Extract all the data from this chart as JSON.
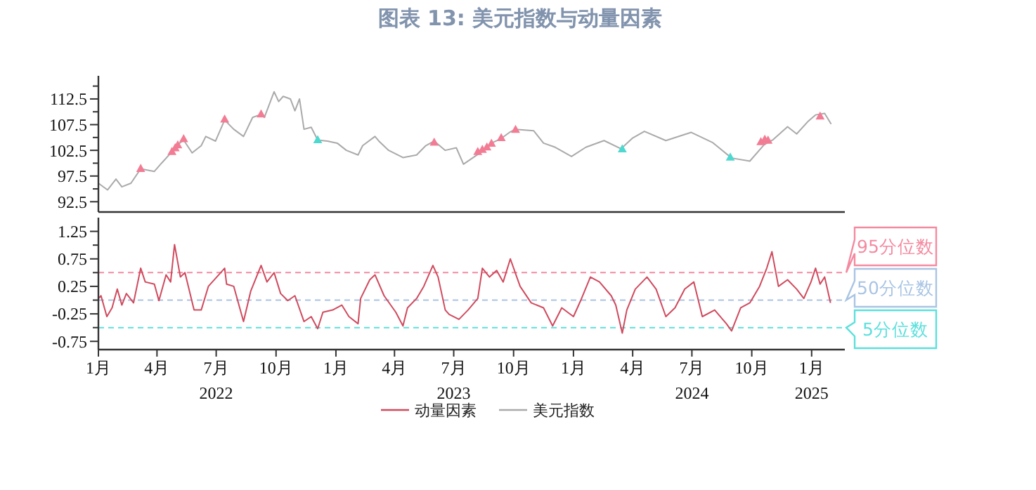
{
  "chart_data": [
    {
      "type": "line",
      "title": "图表 13: 美元指数与动量因素",
      "xlim": [
        "2022-01-01",
        "2025-02-21"
      ],
      "ylim": [
        90.5,
        117
      ],
      "yticks": [
        {
          "value": 92.5,
          "label": "92.5"
        },
        {
          "value": 95,
          "label": null
        },
        {
          "value": 97.5,
          "label": "97.5"
        },
        {
          "value": 100,
          "label": null
        },
        {
          "value": 102.5,
          "label": "102.5"
        },
        {
          "value": 105,
          "label": null
        },
        {
          "value": 107.5,
          "label": "107.5"
        },
        {
          "value": 110,
          "label": null
        },
        {
          "value": 112.5,
          "label": "112.5"
        },
        {
          "value": 115,
          "label": null
        }
      ],
      "tick_labels": "y",
      "legend": "bottom",
      "series": [
        {
          "name": "美元指数",
          "color": "#aaaaaa",
          "type": "line",
          "x": [
            "2022-01-01",
            "2022-01-15",
            "2022-01-28",
            "2022-02-06",
            "2022-02-20",
            "2022-03-07",
            "2022-03-28",
            "2022-04-08",
            "2022-04-26",
            "2022-05-03",
            "2022-05-12",
            "2022-05-25",
            "2022-06-08",
            "2022-06-15",
            "2022-06-30",
            "2022-07-14",
            "2022-07-28",
            "2022-08-12",
            "2022-08-26",
            "2022-09-08",
            "2022-09-13",
            "2022-09-28",
            "2022-10-05",
            "2022-10-12",
            "2022-10-23",
            "2022-10-30",
            "2022-11-06",
            "2022-11-13",
            "2022-11-24",
            "2022-12-04",
            "2022-12-19",
            "2023-01-03",
            "2023-01-17",
            "2023-02-04",
            "2023-02-11",
            "2023-03-02",
            "2023-03-08",
            "2023-03-23",
            "2023-04-14",
            "2023-05-05",
            "2023-05-19",
            "2023-06-01",
            "2023-06-18",
            "2023-07-05",
            "2023-07-16",
            "2023-07-31",
            "2023-08-14",
            "2023-08-28",
            "2023-09-12",
            "2023-09-26",
            "2023-10-04",
            "2023-11-01",
            "2023-11-16",
            "2023-12-04",
            "2023-12-29",
            "2024-01-20",
            "2024-02-17",
            "2024-03-14",
            "2024-04-01",
            "2024-04-19",
            "2024-05-22",
            "2024-06-30",
            "2024-08-02",
            "2024-08-31",
            "2024-09-28",
            "2024-10-20",
            "2024-11-03",
            "2024-11-25",
            "2024-12-09",
            "2024-12-27",
            "2025-01-07",
            "2025-01-21",
            "2025-01-31"
          ],
          "values": [
            96.1,
            94.8,
            96.9,
            95.4,
            96.1,
            98.9,
            98.4,
            100,
            102.5,
            103.6,
            104.5,
            102,
            103.4,
            105.2,
            104.3,
            108.4,
            106.6,
            105.2,
            108.9,
            109.5,
            108.9,
            113.9,
            112,
            113,
            112.5,
            110.2,
            112.5,
            106.6,
            107,
            104.5,
            104.3,
            103.9,
            102.5,
            101.6,
            103.4,
            105.2,
            104.3,
            102.5,
            101.1,
            101.6,
            103.4,
            104.3,
            102.5,
            103,
            99.8,
            101.1,
            102.3,
            103.9,
            104.8,
            106.1,
            106.6,
            106.3,
            103.9,
            103.1,
            101.3,
            103.1,
            104.4,
            102.8,
            104.9,
            106.2,
            104.4,
            106,
            104,
            101,
            100.4,
            103.6,
            104.6,
            107.1,
            105.7,
            108.2,
            109.4,
            109.7,
            107.6
          ]
        },
        {
          "color": "#f27c94",
          "type": "scatter",
          "marker": "triangle",
          "x": [
            "2022-03-07",
            "2022-04-24",
            "2022-04-29",
            "2022-05-03",
            "2022-05-12",
            "2022-07-14",
            "2022-09-08",
            "2023-06-01",
            "2023-08-07",
            "2023-08-14",
            "2023-08-21",
            "2023-08-28",
            "2023-09-12",
            "2023-10-04",
            "2024-10-15",
            "2024-10-21",
            "2024-10-26",
            "2025-01-14"
          ],
          "values": [
            99,
            102.3,
            103,
            103.6,
            104.8,
            108.6,
            109.6,
            104.1,
            102.3,
            102.7,
            103.2,
            103.9,
            105,
            106.6,
            104.2,
            104.7,
            104.5,
            109.2
          ]
        },
        {
          "color": "#4dd9d0",
          "type": "scatter",
          "marker": "triangle",
          "x": [
            "2022-12-04",
            "2024-03-16",
            "2024-08-29"
          ],
          "values": [
            104.6,
            102.8,
            101.2
          ]
        }
      ]
    },
    {
      "type": "line",
      "xlim": [
        "2022-01-01",
        "2025-02-21"
      ],
      "ylim": [
        -0.9,
        1.5
      ],
      "xticks": [
        {
          "value": "2022-01-01",
          "label": "1月"
        },
        {
          "value": "2022-04-01",
          "label": "4月"
        },
        {
          "value": "2022-07-01",
          "label": "7月\n2022"
        },
        {
          "value": "2022-10-01",
          "label": "10月"
        },
        {
          "value": "2023-01-01",
          "label": "1月"
        },
        {
          "value": "2023-04-01",
          "label": "4月"
        },
        {
          "value": "2023-07-01",
          "label": "7月\n2023"
        },
        {
          "value": "2023-10-01",
          "label": "10月"
        },
        {
          "value": "2024-01-01",
          "label": "1月"
        },
        {
          "value": "2024-04-01",
          "label": "4月"
        },
        {
          "value": "2024-07-01",
          "label": "7月\n2024"
        },
        {
          "value": "2024-10-01",
          "label": "10月"
        },
        {
          "value": "2025-01-01",
          "label": "1月\n2025"
        }
      ],
      "yticks": [
        {
          "value": -0.75,
          "label": "-0.75"
        },
        {
          "value": -0.5,
          "label": null
        },
        {
          "value": -0.25,
          "label": "-0.25"
        },
        {
          "value": 0,
          "label": null
        },
        {
          "value": 0.25,
          "label": "0.25"
        },
        {
          "value": 0.5,
          "label": null
        },
        {
          "value": 0.75,
          "label": "0.75"
        },
        {
          "value": 1,
          "label": null
        },
        {
          "value": 1.25,
          "label": "1.25"
        }
      ],
      "legend": "bottom",
      "ref_lines": [
        {
          "axis": "y",
          "value": 0.5,
          "label": "95分位数",
          "color": "#f48aa0",
          "line_style": "dashed"
        },
        {
          "axis": "y",
          "value": 0,
          "label": "50分位数",
          "color": "#a9c4e4",
          "line_style": "dashed"
        },
        {
          "axis": "y",
          "value": -0.5,
          "label": "5分位数",
          "color": "#5ce0dc",
          "line_style": "dashed"
        }
      ],
      "series": [
        {
          "name": "动量因素",
          "color": "#d04a5e",
          "type": "line",
          "x": [
            "2022-01-01",
            "2022-01-05",
            "2022-01-14",
            "2022-01-22",
            "2022-01-30",
            "2022-02-06",
            "2022-02-13",
            "2022-02-24",
            "2022-03-07",
            "2022-03-14",
            "2022-03-28",
            "2022-04-04",
            "2022-04-15",
            "2022-04-22",
            "2022-04-28",
            "2022-05-07",
            "2022-05-14",
            "2022-05-28",
            "2022-06-08",
            "2022-06-19",
            "2022-07-14",
            "2022-07-17",
            "2022-07-28",
            "2022-08-12",
            "2022-08-23",
            "2022-09-08",
            "2022-09-17",
            "2022-09-28",
            "2022-10-08",
            "2022-10-19",
            "2022-10-30",
            "2022-11-13",
            "2022-11-24",
            "2022-12-04",
            "2022-12-12",
            "2022-12-27",
            "2023-01-10",
            "2023-01-21",
            "2023-02-04",
            "2023-02-08",
            "2023-02-22",
            "2023-03-02",
            "2023-03-16",
            "2023-04-03",
            "2023-04-14",
            "2023-04-21",
            "2023-05-05",
            "2023-05-16",
            "2023-05-30",
            "2023-06-07",
            "2023-06-18",
            "2023-06-24",
            "2023-07-09",
            "2023-07-23",
            "2023-08-07",
            "2023-08-14",
            "2023-08-25",
            "2023-09-05",
            "2023-09-15",
            "2023-09-26",
            "2023-10-11",
            "2023-10-28",
            "2023-11-16",
            "2023-11-30",
            "2023-12-14",
            "2024-01-01",
            "2024-01-12",
            "2024-01-27",
            "2024-02-10",
            "2024-02-28",
            "2024-03-06",
            "2024-03-16",
            "2024-03-23",
            "2024-04-05",
            "2024-04-23",
            "2024-05-07",
            "2024-05-22",
            "2024-06-05",
            "2024-06-20",
            "2024-07-04",
            "2024-07-17",
            "2024-08-05",
            "2024-08-23",
            "2024-08-31",
            "2024-09-14",
            "2024-09-28",
            "2024-10-13",
            "2024-10-24",
            "2024-11-01",
            "2024-11-11",
            "2024-11-25",
            "2024-12-09",
            "2024-12-20",
            "2024-12-31",
            "2025-01-07",
            "2025-01-14",
            "2025-01-21",
            "2025-01-30"
          ],
          "values": [
            0.03,
            0.08,
            -0.3,
            -0.14,
            0.2,
            -0.09,
            0.12,
            -0.05,
            0.58,
            0.33,
            0.29,
            -0.01,
            0.46,
            0.33,
            1.01,
            0.42,
            0.5,
            -0.18,
            -0.18,
            0.25,
            0.58,
            0.29,
            0.25,
            -0.39,
            0.16,
            0.63,
            0.33,
            0.5,
            0.12,
            -0.01,
            0.08,
            -0.39,
            -0.3,
            -0.52,
            -0.22,
            -0.18,
            -0.09,
            -0.3,
            -0.43,
            0.03,
            0.37,
            0.46,
            0.08,
            -0.22,
            -0.47,
            -0.14,
            0.03,
            0.25,
            0.63,
            0.42,
            -0.18,
            -0.26,
            -0.35,
            -0.18,
            0.03,
            0.58,
            0.42,
            0.54,
            0.33,
            0.75,
            0.25,
            -0.05,
            -0.14,
            -0.47,
            -0.14,
            -0.3,
            -0.01,
            0.42,
            0.33,
            0.08,
            -0.09,
            -0.6,
            -0.18,
            0.2,
            0.42,
            0.2,
            -0.3,
            -0.14,
            0.2,
            0.33,
            -0.3,
            -0.18,
            -0.43,
            -0.56,
            -0.14,
            -0.05,
            0.25,
            0.58,
            0.88,
            0.25,
            0.37,
            0.2,
            0.03,
            0.33,
            0.58,
            0.29,
            0.42,
            -0.05
          ]
        }
      ]
    }
  ]
}
